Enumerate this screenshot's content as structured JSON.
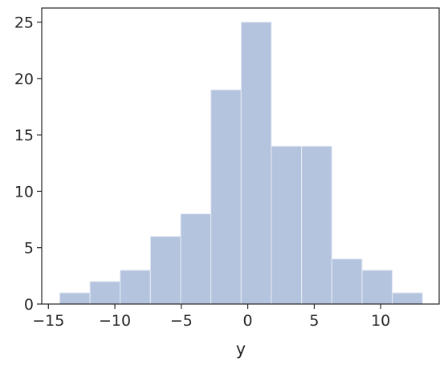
{
  "chart_data": {
    "type": "histogram",
    "xlabel": "y",
    "bins": [
      -14.15,
      -11.875,
      -9.6,
      -7.325,
      -5.05,
      -2.775,
      -0.5,
      1.775,
      4.05,
      6.325,
      8.6,
      10.875,
      13.15
    ],
    "values": [
      1,
      2,
      3,
      6,
      8,
      19,
      25,
      14,
      14,
      4,
      3,
      1
    ],
    "color": "#b4c4de",
    "xlim": [
      -15.5,
      14.4
    ],
    "ylim": [
      0,
      26.25
    ],
    "xticks": [
      {
        "value": -15,
        "label": "−15"
      },
      {
        "value": -10,
        "label": "−10"
      },
      {
        "value": -5,
        "label": "−5"
      },
      0,
      5,
      10
    ],
    "yticks": [
      0,
      5,
      10,
      15,
      20,
      25
    ]
  }
}
